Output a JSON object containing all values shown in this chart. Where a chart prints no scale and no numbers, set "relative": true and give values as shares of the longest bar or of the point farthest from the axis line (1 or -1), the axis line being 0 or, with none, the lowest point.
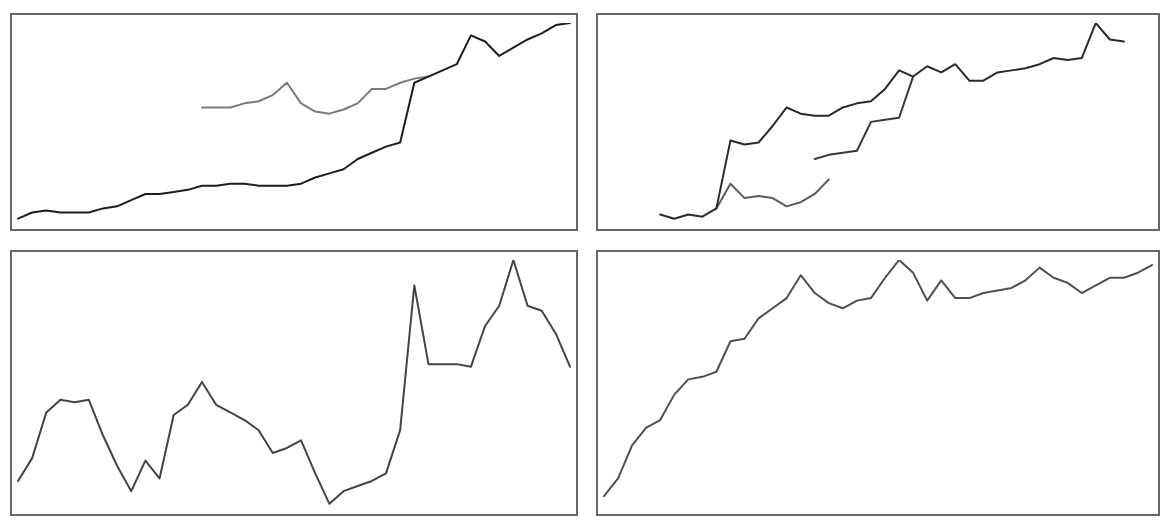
{
  "chart_data": [
    {
      "type": "line",
      "relative": true,
      "categories": [
        null,
        null,
        null,
        null,
        null,
        null,
        null,
        null,
        null,
        null,
        null,
        null,
        null,
        null,
        null,
        null,
        null,
        null,
        null,
        null,
        null,
        null,
        null,
        null,
        null,
        null,
        null,
        null,
        null,
        null,
        null,
        null,
        null,
        null,
        null,
        null,
        null,
        null,
        null,
        null
      ],
      "series": [
        {
          "color": "#1e1e1e",
          "values": [
            0.05,
            0.08,
            0.09,
            0.08,
            0.08,
            0.08,
            0.1,
            0.11,
            0.14,
            0.17,
            0.17,
            0.18,
            0.19,
            0.21,
            0.21,
            0.22,
            0.22,
            0.21,
            0.21,
            0.21,
            0.22,
            0.25,
            0.27,
            0.29,
            0.34,
            0.37,
            0.4,
            0.42,
            0.71,
            0.74,
            0.77,
            0.8,
            0.94,
            0.91,
            0.84,
            0.88,
            0.92,
            0.95,
            0.99,
            1
          ]
        },
        {
          "color": "#7a7a7a",
          "values": [
            null,
            null,
            null,
            null,
            null,
            null,
            null,
            null,
            null,
            null,
            null,
            null,
            null,
            0.59,
            0.59,
            0.59,
            0.61,
            0.62,
            0.65,
            0.71,
            0.61,
            0.57,
            0.56,
            0.58,
            0.61,
            0.68,
            0.68,
            0.71,
            0.73,
            0.74,
            null,
            null,
            null,
            null,
            null,
            null,
            null,
            null,
            null,
            null
          ]
        }
      ]
    },
    {
      "type": "line",
      "relative": true,
      "categories": [
        null,
        null,
        null,
        null,
        null,
        null,
        null,
        null,
        null,
        null,
        null,
        null,
        null,
        null,
        null,
        null,
        null,
        null,
        null,
        null,
        null,
        null,
        null,
        null,
        null,
        null,
        null,
        null,
        null,
        null,
        null,
        null,
        null,
        null,
        null,
        null,
        null,
        null,
        null,
        null
      ],
      "series": [
        {
          "color": "#2a2a2a",
          "values": [
            null,
            null,
            null,
            null,
            0.07,
            0.05,
            0.07,
            0.06,
            0.1,
            0.43,
            0.41,
            0.42,
            0.5,
            0.59,
            0.56,
            0.55,
            0.55,
            0.59,
            0.61,
            0.62,
            0.68,
            0.77,
            0.74,
            0.79,
            0.76,
            0.8,
            0.72,
            0.72,
            0.76,
            0.77,
            0.78,
            0.8,
            0.83,
            0.82,
            0.83,
            1,
            0.92,
            0.91,
            null,
            null
          ]
        },
        {
          "color": "#5c5c5c",
          "values": [
            null,
            null,
            null,
            null,
            null,
            null,
            null,
            null,
            0.1,
            0.22,
            0.15,
            0.16,
            0.15,
            0.11,
            0.13,
            0.17,
            0.24,
            null,
            null,
            null,
            null,
            null,
            null,
            null,
            null,
            null,
            null,
            null,
            null,
            null,
            null,
            null,
            null,
            null,
            null,
            null,
            null,
            null,
            null,
            null
          ]
        },
        {
          "color": "#383838",
          "values": [
            null,
            null,
            null,
            null,
            null,
            null,
            null,
            null,
            null,
            null,
            null,
            null,
            null,
            null,
            null,
            0.34,
            0.36,
            0.37,
            0.38,
            0.52,
            0.53,
            0.54,
            0.74,
            null,
            null,
            null,
            null,
            null,
            null,
            null,
            null,
            null,
            null,
            null,
            null,
            null,
            null,
            null,
            null,
            null
          ]
        }
      ]
    },
    {
      "type": "line",
      "relative": true,
      "categories": [
        null,
        null,
        null,
        null,
        null,
        null,
        null,
        null,
        null,
        null,
        null,
        null,
        null,
        null,
        null,
        null,
        null,
        null,
        null,
        null,
        null,
        null,
        null,
        null,
        null,
        null,
        null,
        null,
        null,
        null,
        null,
        null,
        null,
        null,
        null,
        null,
        null,
        null,
        null,
        null
      ],
      "series": [
        {
          "color": "#444444",
          "values": [
            0.13,
            0.22,
            0.4,
            0.45,
            0.44,
            0.45,
            0.31,
            0.19,
            0.09,
            0.21,
            0.14,
            0.39,
            0.43,
            0.52,
            0.43,
            0.4,
            0.37,
            0.33,
            0.24,
            0.26,
            0.29,
            0.16,
            0.04,
            0.09,
            0.11,
            0.13,
            0.16,
            0.33,
            0.9,
            0.59,
            0.59,
            0.59,
            0.58,
            0.74,
            0.82,
            1,
            0.82,
            0.8,
            0.71,
            0.58
          ]
        }
      ]
    },
    {
      "type": "line",
      "relative": true,
      "categories": [
        null,
        null,
        null,
        null,
        null,
        null,
        null,
        null,
        null,
        null,
        null,
        null,
        null,
        null,
        null,
        null,
        null,
        null,
        null,
        null,
        null,
        null,
        null,
        null,
        null,
        null,
        null,
        null,
        null,
        null,
        null,
        null,
        null,
        null,
        null,
        null,
        null,
        null,
        null,
        null
      ],
      "series": [
        {
          "color": "#505050",
          "values": [
            0.07,
            0.14,
            0.27,
            0.34,
            0.37,
            0.47,
            0.53,
            0.54,
            0.56,
            0.68,
            0.69,
            0.77,
            0.81,
            0.85,
            0.94,
            0.87,
            0.83,
            0.81,
            0.84,
            0.85,
            0.93,
            1,
            0.95,
            0.84,
            0.92,
            0.85,
            0.85,
            0.87,
            0.88,
            0.89,
            0.92,
            0.97,
            0.93,
            0.91,
            0.87,
            0.9,
            0.93,
            0.93,
            0.95,
            0.98
          ]
        }
      ]
    }
  ]
}
